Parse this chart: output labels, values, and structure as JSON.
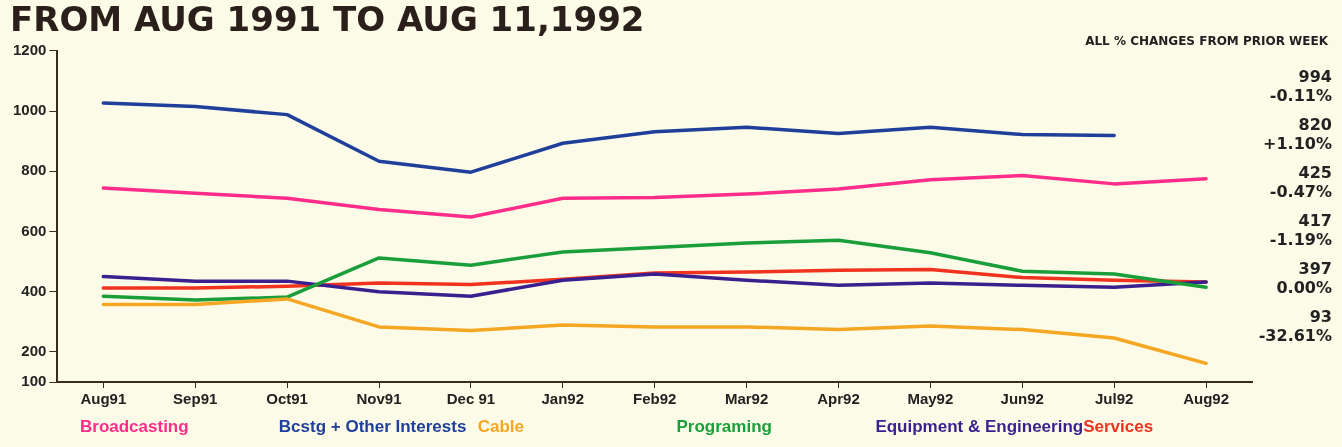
{
  "chart_data": {
    "type": "line",
    "title": "FROM AUG 1991 TO AUG 11,1992",
    "annotations": [
      "ALL % CHANGES FROM PRIOR WEEK",
      "994\n-0.11%",
      "820\n+1.10%",
      "425\n-0.47%",
      "417\n-1.19%",
      "397\n0.00%",
      "93\n-32.61%"
    ],
    "categories": [
      "Aug91",
      "Sep91",
      "Oct91",
      "Nov91",
      "Dec 91",
      "Jan92",
      "Feb92",
      "Mar92",
      "Apr92",
      "May92",
      "Jun92",
      "Jul92",
      "Aug92"
    ],
    "ylim": [
      100,
      1200
    ],
    "yticks": [
      100,
      200,
      400,
      600,
      800,
      1000,
      1200
    ],
    "grid": false,
    "legend": "bottom",
    "marker": "none",
    "line_style": "solid",
    "series": [
      {
        "name": "Broadcasting",
        "color": "#ff2d8a",
        "values": [
          744,
          727,
          710,
          673,
          648,
          710,
          713,
          724,
          741,
          772,
          786,
          758,
          775
        ]
      },
      {
        "name": "Bcstg + Other Interests",
        "color": "#1f3f9a",
        "values": [
          1027,
          1015,
          988,
          833,
          797,
          893,
          931,
          946,
          925,
          946,
          922,
          919,
          null
        ]
      },
      {
        "name": "Cable",
        "color": "#f5a623",
        "values": [
          357,
          357,
          376,
          283,
          271,
          289,
          283,
          283,
          274,
          286,
          274,
          246,
          162
        ]
      },
      {
        "name": "Programing",
        "color": "#1a9e3a",
        "values": [
          385,
          372,
          382,
          512,
          488,
          532,
          547,
          562,
          571,
          529,
          468,
          459,
          415
        ]
      },
      {
        "name": "Equipment & Engineering",
        "color": "#3a1f8f",
        "values": [
          450,
          435,
          435,
          400,
          385,
          438,
          459,
          438,
          421,
          429,
          421,
          415,
          432
        ]
      },
      {
        "name": "Services",
        "color": "#f0331f",
        "values": [
          412,
          412,
          418,
          429,
          424,
          441,
          462,
          465,
          471,
          474,
          447,
          438,
          432
        ]
      }
    ]
  }
}
